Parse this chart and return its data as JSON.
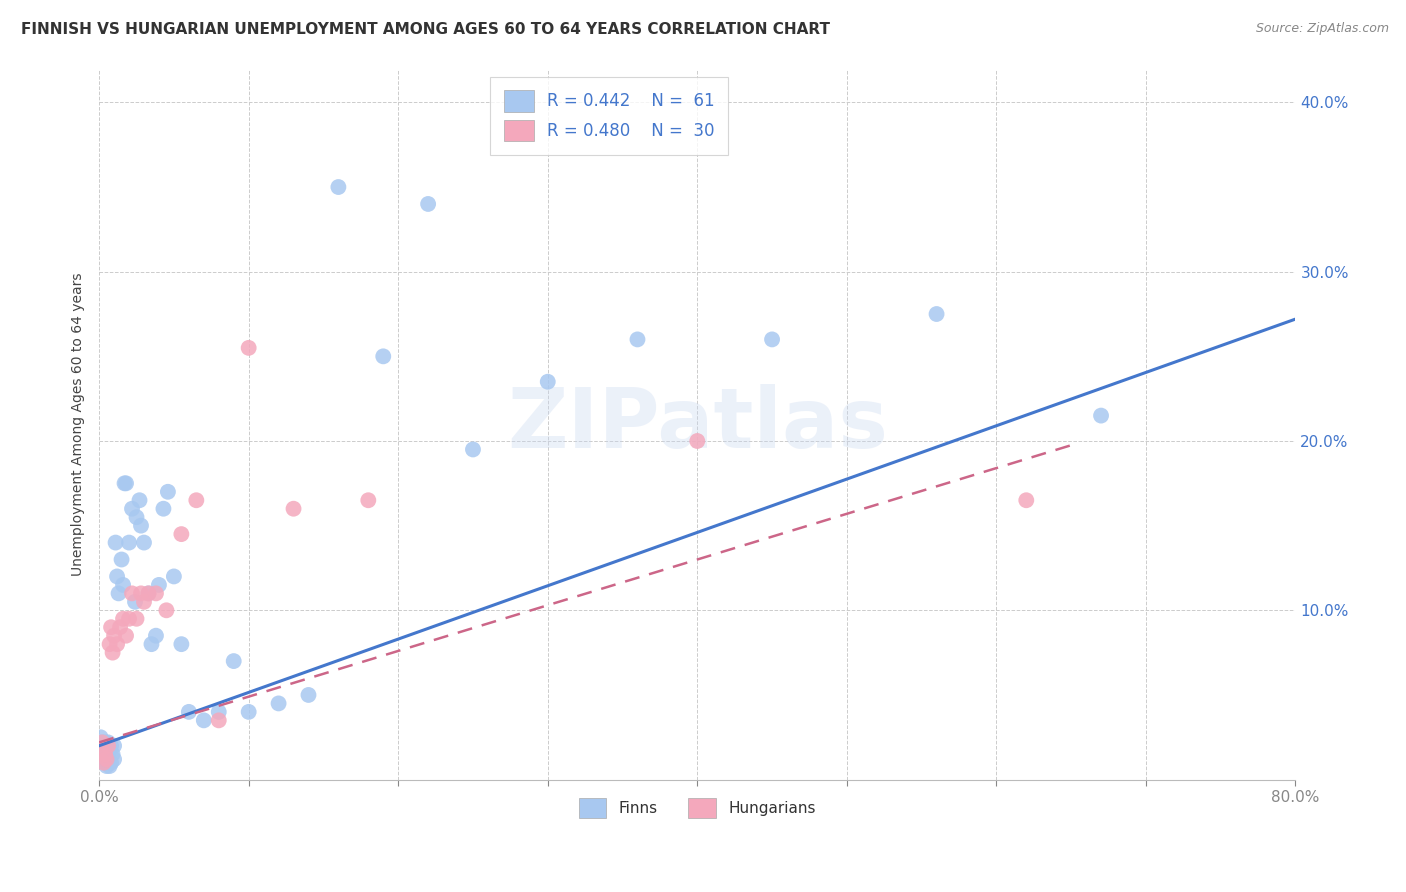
{
  "title": "FINNISH VS HUNGARIAN UNEMPLOYMENT AMONG AGES 60 TO 64 YEARS CORRELATION CHART",
  "source": "Source: ZipAtlas.com",
  "ylabel": "Unemployment Among Ages 60 to 64 years",
  "xlim": [
    0.0,
    0.8
  ],
  "ylim": [
    0.0,
    0.42
  ],
  "xtick_positions": [
    0.0,
    0.1,
    0.2,
    0.3,
    0.4,
    0.5,
    0.6,
    0.7,
    0.8
  ],
  "xtick_labels_sparse": {
    "0": "0.0%",
    "8": "80.0%"
  },
  "ytick_positions": [
    0.1,
    0.2,
    0.3,
    0.4
  ],
  "ytick_labels": [
    "10.0%",
    "20.0%",
    "30.0%",
    "40.0%"
  ],
  "legend_r_finn": "R = 0.442",
  "legend_n_finn": "N =  61",
  "legend_r_hung": "R = 0.480",
  "legend_n_hung": "N =  30",
  "finn_color": "#A8C8F0",
  "hung_color": "#F4A8BC",
  "finn_line_color": "#4477CC",
  "hung_line_color": "#CC6688",
  "watermark": "ZIPatlas",
  "background_color": "#FFFFFF",
  "grid_color": "#CCCCCC",
  "title_fontsize": 11,
  "axis_label_fontsize": 10,
  "tick_fontsize": 11,
  "finn_intercept": 0.02,
  "finn_slope": 0.315,
  "hung_intercept": 0.022,
  "hung_slope": 0.27,
  "finns_x": [
    0.001,
    0.001,
    0.002,
    0.002,
    0.002,
    0.003,
    0.003,
    0.003,
    0.004,
    0.004,
    0.004,
    0.005,
    0.005,
    0.005,
    0.006,
    0.006,
    0.007,
    0.007,
    0.008,
    0.008,
    0.009,
    0.01,
    0.01,
    0.011,
    0.012,
    0.013,
    0.015,
    0.016,
    0.017,
    0.018,
    0.02,
    0.022,
    0.024,
    0.025,
    0.027,
    0.028,
    0.03,
    0.033,
    0.035,
    0.038,
    0.04,
    0.043,
    0.046,
    0.05,
    0.055,
    0.06,
    0.07,
    0.08,
    0.09,
    0.1,
    0.12,
    0.14,
    0.16,
    0.19,
    0.22,
    0.25,
    0.3,
    0.36,
    0.45,
    0.56,
    0.67
  ],
  "finns_y": [
    0.02,
    0.025,
    0.018,
    0.022,
    0.015,
    0.02,
    0.018,
    0.012,
    0.022,
    0.015,
    0.01,
    0.02,
    0.015,
    0.008,
    0.022,
    0.013,
    0.018,
    0.008,
    0.02,
    0.01,
    0.015,
    0.02,
    0.012,
    0.14,
    0.12,
    0.11,
    0.13,
    0.115,
    0.175,
    0.175,
    0.14,
    0.16,
    0.105,
    0.155,
    0.165,
    0.15,
    0.14,
    0.11,
    0.08,
    0.085,
    0.115,
    0.16,
    0.17,
    0.12,
    0.08,
    0.04,
    0.035,
    0.04,
    0.07,
    0.04,
    0.045,
    0.05,
    0.35,
    0.25,
    0.34,
    0.195,
    0.235,
    0.26,
    0.26,
    0.275,
    0.215
  ],
  "hungarians_x": [
    0.001,
    0.002,
    0.003,
    0.004,
    0.005,
    0.006,
    0.007,
    0.008,
    0.009,
    0.01,
    0.012,
    0.014,
    0.016,
    0.018,
    0.02,
    0.022,
    0.025,
    0.028,
    0.03,
    0.033,
    0.038,
    0.045,
    0.055,
    0.065,
    0.08,
    0.1,
    0.13,
    0.18,
    0.4,
    0.62
  ],
  "hungarians_y": [
    0.018,
    0.022,
    0.01,
    0.015,
    0.012,
    0.02,
    0.08,
    0.09,
    0.075,
    0.085,
    0.08,
    0.09,
    0.095,
    0.085,
    0.095,
    0.11,
    0.095,
    0.11,
    0.105,
    0.11,
    0.11,
    0.1,
    0.145,
    0.165,
    0.035,
    0.255,
    0.16,
    0.165,
    0.2,
    0.165
  ]
}
